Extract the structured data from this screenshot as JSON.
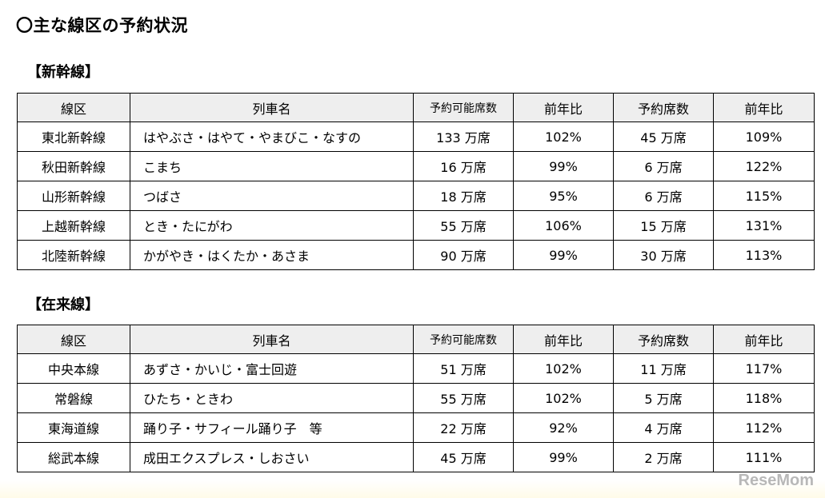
{
  "title": "〇主な線区の予約状況",
  "shinkansen": {
    "heading": "【新幹線】",
    "headers": [
      "線区",
      "列車名",
      "予約可能席数",
      "前年比",
      "予約席数",
      "前年比"
    ],
    "rows": [
      [
        "東北新幹線",
        "はやぶさ・はやて・やまびこ・なすの",
        "133 万席",
        "102%",
        "45 万席",
        "109%"
      ],
      [
        "秋田新幹線",
        "こまち",
        "16 万席",
        "99%",
        "6 万席",
        "122%"
      ],
      [
        "山形新幹線",
        "つばさ",
        "18 万席",
        "95%",
        "6 万席",
        "115%"
      ],
      [
        "上越新幹線",
        "とき・たにがわ",
        "55 万席",
        "106%",
        "15 万席",
        "131%"
      ],
      [
        "北陸新幹線",
        "かがやき・はくたか・あさま",
        "90 万席",
        "99%",
        "30 万席",
        "113%"
      ]
    ]
  },
  "zairaisen": {
    "heading": "【在来線】",
    "headers": [
      "線区",
      "列車名",
      "予約可能席数",
      "前年比",
      "予約席数",
      "前年比"
    ],
    "rows": [
      [
        "中央本線",
        "あずさ・かいじ・富士回遊",
        "51 万席",
        "102%",
        "11 万席",
        "117%"
      ],
      [
        "常磐線",
        "ひたち・ときわ",
        "55 万席",
        "102%",
        "5 万席",
        "118%"
      ],
      [
        "東海道線",
        "踊り子・サフィール踊り子　等",
        "22 万席",
        "92%",
        "4 万席",
        "112%"
      ],
      [
        "総武本線",
        "成田エクスプレス・しおさい",
        "45 万席",
        "99%",
        "2 万席",
        "111%"
      ]
    ]
  },
  "watermark": "ReseMom"
}
